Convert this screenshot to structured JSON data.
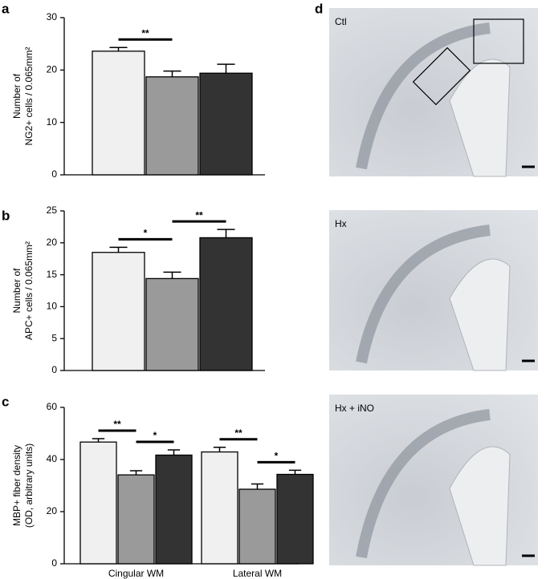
{
  "chart_data": [
    {
      "type": "bar",
      "panel_label": "a",
      "ylabel": [
        "Number of",
        "NG2+ cells / 0.065mm²"
      ],
      "values": [
        23.6,
        18.7,
        19.4
      ],
      "errors": [
        0.7,
        1.1,
        1.7
      ],
      "colors": [
        "#f0f0f0",
        "#9a9a9a",
        "#333333"
      ],
      "ylim": [
        0,
        30
      ],
      "yticks": [
        0,
        10,
        20,
        30
      ],
      "annotations": [
        {
          "text": "**",
          "from": 0,
          "to": 1
        }
      ]
    },
    {
      "type": "bar",
      "panel_label": "b",
      "ylabel": [
        "Number of",
        "APC+ cells / 0.065mm²"
      ],
      "values": [
        18.5,
        14.4,
        20.8
      ],
      "errors": [
        0.8,
        1.0,
        1.3
      ],
      "colors": [
        "#f0f0f0",
        "#9a9a9a",
        "#333333"
      ],
      "ylim": [
        0,
        25
      ],
      "yticks": [
        0,
        5,
        10,
        15,
        20,
        25
      ],
      "annotations": [
        {
          "text": "*",
          "from": 0,
          "to": 1
        },
        {
          "text": "**",
          "from": 1,
          "to": 2
        }
      ]
    },
    {
      "type": "grouped_bar",
      "panel_label": "c",
      "ylabel": [
        "MBP+ fiber density",
        "(OD, arbitrary units)"
      ],
      "categories": [
        "Cingular WM",
        "Lateral WM"
      ],
      "series": [
        {
          "color": "#f0f0f0",
          "values": [
            46.7,
            42.9
          ],
          "errors": [
            1.3,
            1.8
          ]
        },
        {
          "color": "#9a9a9a",
          "values": [
            34.1,
            28.6
          ],
          "errors": [
            1.6,
            2.0
          ]
        },
        {
          "color": "#333333",
          "values": [
            41.7,
            34.3
          ],
          "errors": [
            2.0,
            1.6
          ]
        }
      ],
      "ylim": [
        0,
        60
      ],
      "yticks": [
        0,
        20,
        40,
        60
      ],
      "annotations": [
        {
          "text": "**",
          "group": 0,
          "from": 0,
          "to": 1
        },
        {
          "text": "*",
          "group": 0,
          "from": 1,
          "to": 2
        },
        {
          "text": "**",
          "group": 1,
          "from": 0,
          "to": 1
        },
        {
          "text": "*",
          "group": 1,
          "from": 1,
          "to": 2
        }
      ]
    }
  ],
  "panel_d": {
    "label": "d",
    "images": [
      "Ctl",
      "Hx",
      "Hx + iNO"
    ]
  }
}
